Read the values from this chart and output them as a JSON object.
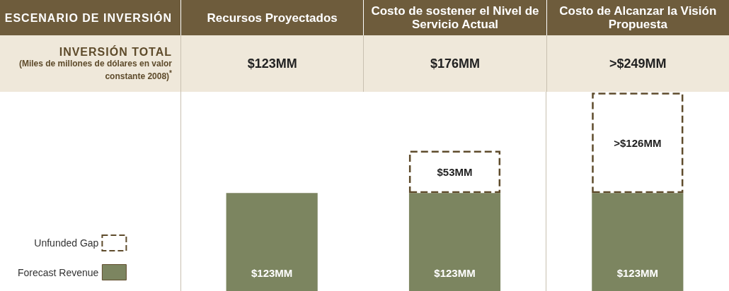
{
  "chart_data": {
    "type": "bar",
    "title": "ESCENARIO DE INVERSIÓN",
    "subtitle": "INVERSIÓN TOTAL",
    "annotations": [
      "(Miles de millones de dólares en valor constante 2008)$^{*}$",
      "$123MM",
      "$176MM",
      ">$249MM"
    ],
    "categories": [
      "Recursos Proyectados",
      "Costo de sostener el Nivel de Servicio Actual",
      "Costo de Alcanzar la Visión Propuesta"
    ],
    "stacked": true,
    "grid": "x",
    "legend": "bottom left",
    "series": [
      {
        "name": "Forecast Revenue",
        "color": "#7c8560",
        "values": [
          123,
          123,
          123
        ],
        "value_labels": [
          "$123MM",
          "$123MM",
          "$123MM"
        ]
      },
      {
        "name": "Unfunded Gap",
        "color": "#5e4b2b",
        "line_style": "dashed",
        "values": [
          null,
          53,
          126
        ],
        "value_labels": [
          null,
          "$53MM",
          ">$126MM"
        ]
      }
    ]
  }
}
